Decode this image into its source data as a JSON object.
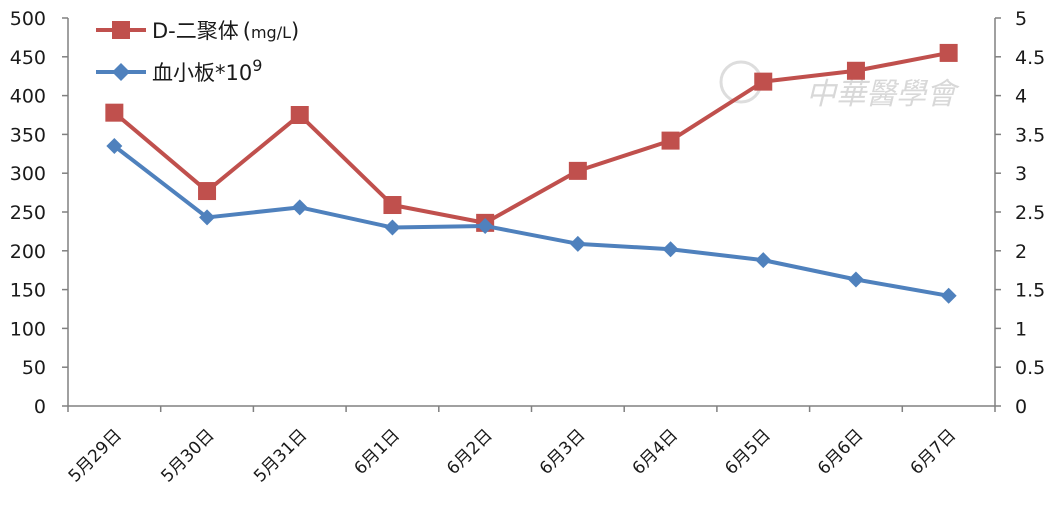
{
  "chart_data": {
    "type": "line",
    "categories": [
      "5月29日",
      "5月30日",
      "5月31日",
      "6月1日",
      "6月2日",
      "6月3日",
      "6月4日",
      "6月5日",
      "6月6日",
      "6月7日"
    ],
    "series": [
      {
        "name": "D-二聚体",
        "unit": "mg/L",
        "axis": "right",
        "color": "#c0504d",
        "marker": "square",
        "values": [
          3.78,
          2.77,
          3.75,
          2.59,
          2.36,
          3.03,
          3.42,
          4.18,
          4.32,
          4.55
        ]
      },
      {
        "name": "血小板*10",
        "name_sup": "9",
        "axis": "left",
        "color": "#4f81bd",
        "marker": "diamond",
        "values": [
          335,
          243,
          256,
          230,
          232,
          209,
          202,
          188,
          163,
          142
        ]
      }
    ],
    "y_left": {
      "min": 0,
      "max": 500,
      "step": 50,
      "tick_labels": [
        "0",
        "50",
        "100",
        "150",
        "200",
        "250",
        "300",
        "350",
        "400",
        "450",
        "500"
      ]
    },
    "y_right": {
      "min": 0,
      "max": 5,
      "step": 0.5,
      "tick_labels": [
        "0",
        "0.5",
        "1",
        "1.5",
        "2",
        "2.5",
        "3",
        "3.5",
        "4",
        "4.5",
        "5"
      ]
    },
    "grid": false,
    "legend_position": "top-left"
  },
  "watermark": {
    "text": "中華醫學會"
  }
}
